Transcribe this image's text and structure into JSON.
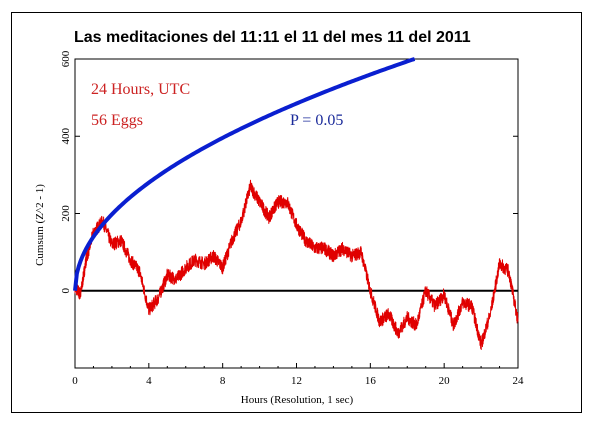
{
  "colors": {
    "cumsum": "#e00000",
    "envelope": "#0a1fd0",
    "zero_line": "#000000",
    "annotation_left": "#cc2222",
    "annotation_right": "#1a2a9a"
  },
  "chart_data": {
    "type": "line",
    "title": "Las meditaciones del 11:11 el 11 del mes 11 del 2011",
    "xlabel": "Hours (Resolution, 1 sec)",
    "ylabel": "Cumsum (Z^2 - 1)",
    "xlim": [
      0,
      24
    ],
    "ylim": [
      -200,
      600
    ],
    "xticks": [
      0,
      4,
      8,
      12,
      16,
      20,
      24
    ],
    "yticks": [
      0,
      200,
      400,
      600
    ],
    "annotations": [
      "24 Hours, UTC",
      "56 Eggs",
      "P = 0.05"
    ],
    "series": [
      {
        "role": "cumsum",
        "color": "#e00000",
        "x": [
          0,
          0.3,
          0.6,
          1.0,
          1.5,
          2.0,
          2.5,
          3.0,
          3.5,
          4.0,
          4.5,
          5.0,
          5.5,
          6.0,
          6.5,
          7.0,
          7.5,
          8.0,
          8.5,
          9.0,
          9.5,
          10.0,
          10.5,
          11.0,
          11.5,
          12.0,
          12.5,
          13.0,
          13.5,
          14.0,
          14.5,
          15.0,
          15.5,
          16.0,
          16.5,
          17.0,
          17.5,
          18.0,
          18.5,
          19.0,
          19.5,
          20.0,
          20.5,
          21.0,
          21.5,
          22.0,
          22.5,
          23.0,
          23.5,
          24.0
        ],
        "y": [
          10,
          -10,
          80,
          150,
          180,
          120,
          130,
          80,
          50,
          -50,
          -20,
          40,
          30,
          60,
          80,
          70,
          90,
          60,
          130,
          180,
          270,
          230,
          190,
          230,
          230,
          170,
          130,
          110,
          110,
          90,
          110,
          90,
          100,
          0,
          -80,
          -60,
          -110,
          -70,
          -90,
          0,
          -40,
          -10,
          -90,
          -30,
          -40,
          -140,
          -60,
          70,
          50,
          -80
        ]
      },
      {
        "role": "envelope",
        "name": "P = 0.05",
        "color": "#0a1fd0",
        "x": [
          0,
          0.25,
          0.5,
          1,
          1.5,
          2,
          3,
          4,
          5,
          6,
          7,
          8,
          9,
          10,
          11,
          12,
          13,
          14,
          15,
          16,
          17,
          18,
          19
        ],
        "y": [
          0,
          70,
          99,
          140,
          171,
          198,
          242,
          280,
          313,
          343,
          370,
          396,
          420,
          443,
          464,
          485,
          505,
          524,
          542,
          560,
          577,
          594,
          610
        ]
      }
    ]
  }
}
